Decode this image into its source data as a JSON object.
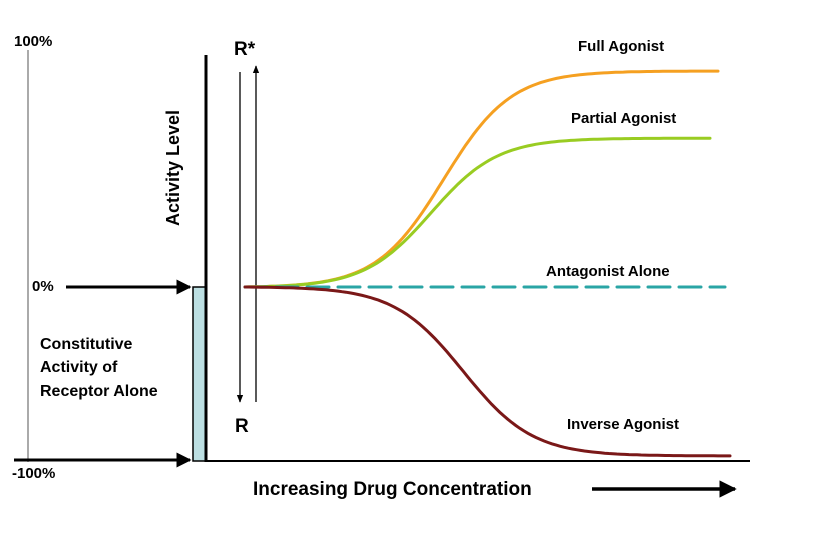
{
  "chart_data": {
    "type": "line",
    "title": "",
    "xlabel": "Increasing Drug Concentration",
    "ylabel": "Activity Level",
    "y_ticks": [
      "100%",
      "0%",
      "-100%"
    ],
    "ylim": [
      -100,
      100
    ],
    "state_labels": {
      "active": "R*",
      "inactive": "R"
    },
    "baseline_label": [
      "Constitutive",
      "Activity of",
      "Receptor Alone"
    ],
    "series": [
      {
        "name": "Full Agonist",
        "color": "#f5a021",
        "final_value": 90,
        "midpoint": 0.42,
        "steepness": 14
      },
      {
        "name": "Partial Agonist",
        "color": "#99cc22",
        "final_value": 62,
        "midpoint": 0.4,
        "steepness": 14
      },
      {
        "name": "Antagonist Alone",
        "color": "#2aa5a5",
        "final_value": 0,
        "midpoint": 0.5,
        "steepness": 1,
        "dashed": true
      },
      {
        "name": "Inverse Agonist",
        "color": "#7a1818",
        "final_value": -96,
        "midpoint": 0.45,
        "steepness": 14
      }
    ]
  }
}
